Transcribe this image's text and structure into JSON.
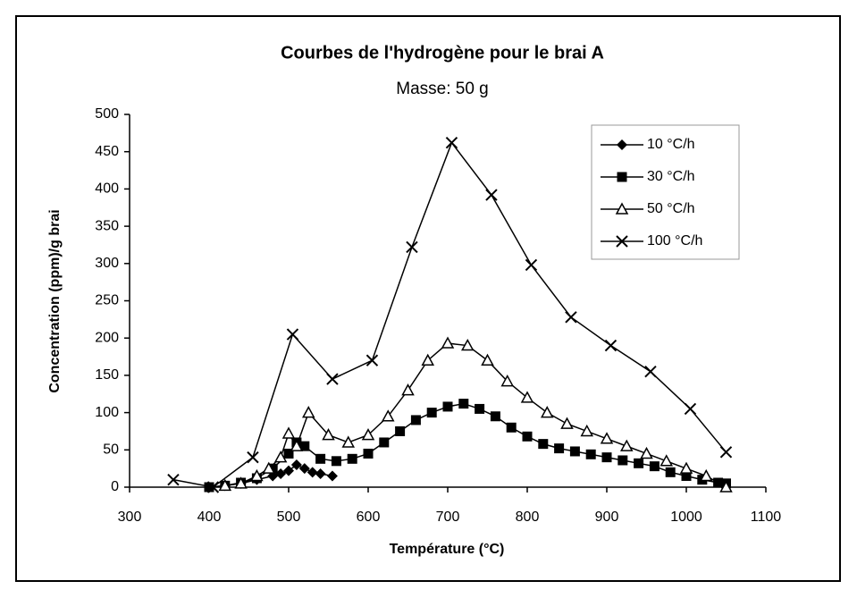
{
  "chart_data": {
    "type": "line",
    "title": "Courbes de l'hydrogène pour le brai A",
    "subtitle": "Masse:  50 g",
    "x_label": "Température (°C)",
    "y_label": "Concentration (ppm)/g brai",
    "xlim": [
      300,
      1100
    ],
    "xticks": [
      300,
      400,
      500,
      600,
      700,
      800,
      900,
      1000,
      1100
    ],
    "ylim": [
      0,
      500
    ],
    "yticks": [
      0,
      50,
      100,
      150,
      200,
      250,
      300,
      350,
      400,
      450,
      500
    ],
    "grid": false,
    "legend": "top-right",
    "series": [
      {
        "name": "10 °C/h",
        "color": "#000000",
        "marker": "diamond",
        "x": [
          400,
          420,
          440,
          460,
          480,
          490,
          500,
          510,
          520,
          530,
          540,
          555
        ],
        "values": [
          0,
          2,
          5,
          10,
          15,
          18,
          22,
          30,
          25,
          20,
          18,
          15
        ]
      },
      {
        "name": "30 °C/h",
        "color": "#000000",
        "marker": "square",
        "x": [
          400,
          420,
          440,
          460,
          480,
          500,
          510,
          520,
          540,
          560,
          580,
          600,
          620,
          640,
          660,
          680,
          700,
          720,
          740,
          760,
          780,
          800,
          820,
          840,
          860,
          880,
          900,
          920,
          940,
          960,
          980,
          1000,
          1020,
          1040,
          1050
        ],
        "values": [
          0,
          2,
          6,
          12,
          25,
          45,
          60,
          55,
          38,
          35,
          38,
          45,
          60,
          75,
          90,
          100,
          108,
          112,
          105,
          95,
          80,
          68,
          58,
          52,
          48,
          44,
          40,
          36,
          32,
          28,
          20,
          15,
          10,
          6,
          5
        ]
      },
      {
        "name": "50 °C/h",
        "color": "#000000",
        "marker": "triangle",
        "x": [
          420,
          440,
          460,
          475,
          490,
          500,
          510,
          525,
          550,
          575,
          600,
          625,
          650,
          675,
          700,
          725,
          750,
          775,
          800,
          825,
          850,
          875,
          900,
          925,
          950,
          975,
          1000,
          1025,
          1050
        ],
        "values": [
          2,
          5,
          15,
          25,
          40,
          72,
          55,
          100,
          70,
          60,
          70,
          95,
          130,
          170,
          193,
          190,
          170,
          142,
          120,
          100,
          85,
          75,
          65,
          55,
          45,
          35,
          25,
          15,
          0
        ]
      },
      {
        "name": "100 °C/h",
        "color": "#000000",
        "marker": "x",
        "x": [
          355,
          405,
          455,
          505,
          555,
          605,
          655,
          705,
          755,
          805,
          855,
          905,
          955,
          1005,
          1050
        ],
        "values": [
          10,
          0,
          40,
          205,
          145,
          170,
          322,
          462,
          392,
          298,
          228,
          190,
          155,
          105,
          47
        ]
      }
    ]
  }
}
